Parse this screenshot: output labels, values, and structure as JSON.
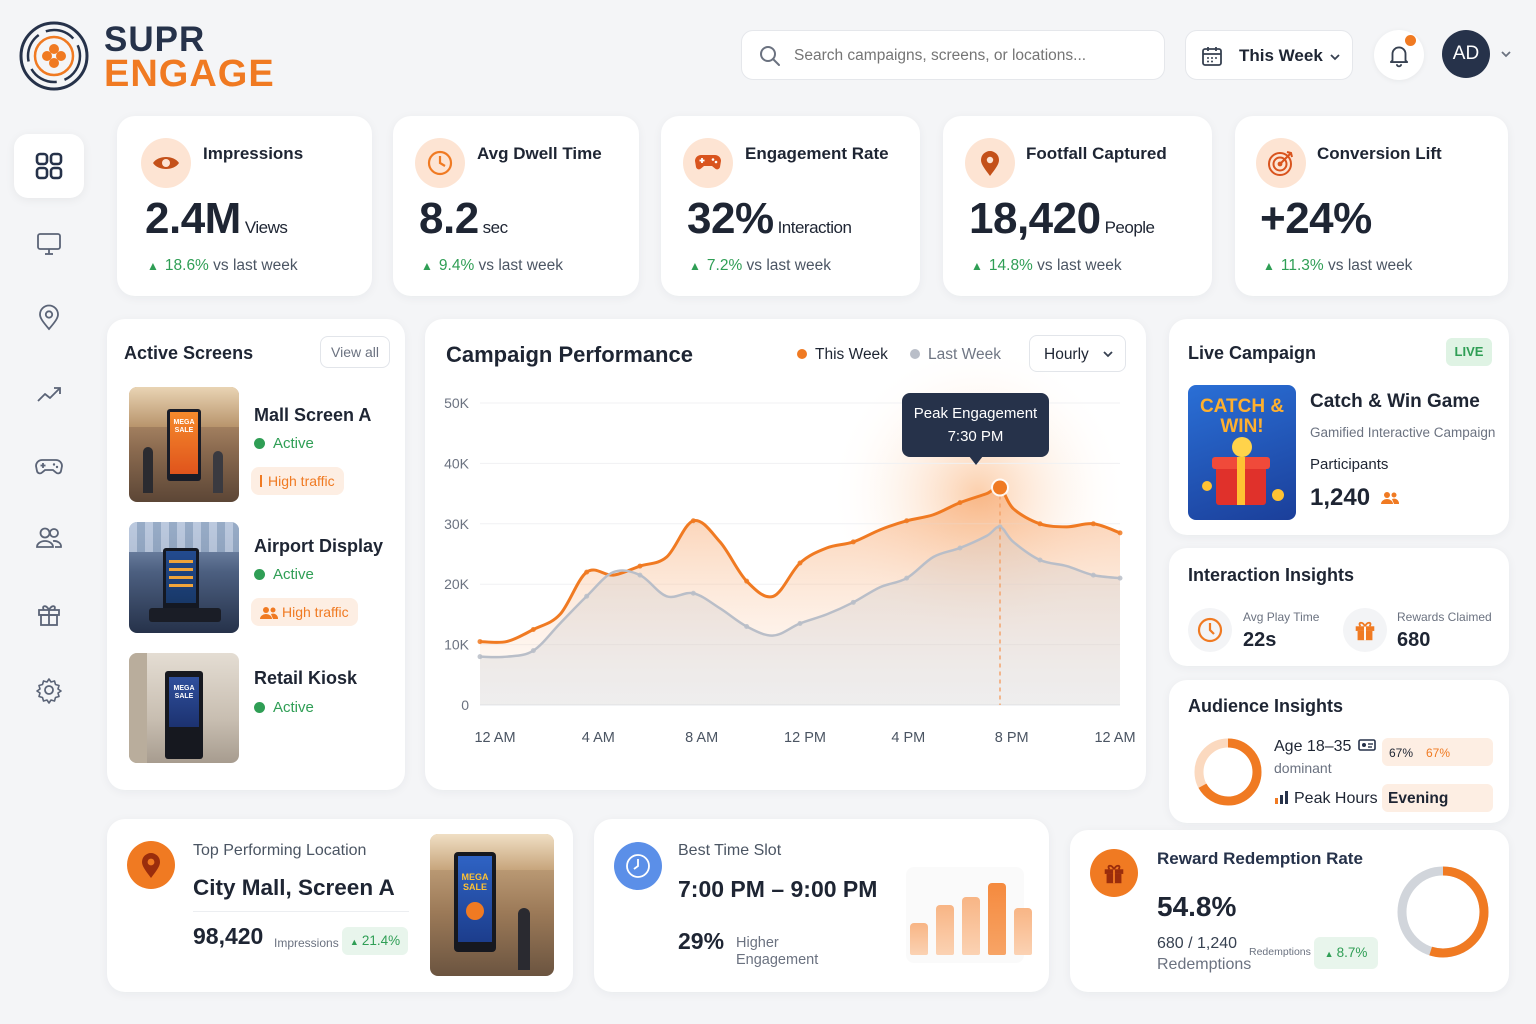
{
  "brand": {
    "line1": "SUPR",
    "line2": "ENGAGE"
  },
  "header": {
    "search_placeholder": "Search campaigns, screens, or locations...",
    "date_range": "This Week",
    "avatar_initials": "AD"
  },
  "sidebar": {
    "items": [
      {
        "icon": "grid-icon",
        "active": true
      },
      {
        "icon": "monitor-icon"
      },
      {
        "icon": "map-pin-icon"
      },
      {
        "icon": "trend-icon"
      },
      {
        "icon": "gamepad-icon"
      },
      {
        "icon": "users-icon"
      },
      {
        "icon": "gift-icon"
      },
      {
        "icon": "gear-icon"
      }
    ]
  },
  "kpis": [
    {
      "title": "Impressions",
      "value": "2.4M",
      "unit": "Views",
      "delta": "18.6%",
      "delta_suffix": "vs last week",
      "icon": "eye-icon"
    },
    {
      "title": "Avg Dwell Time",
      "value": "8.2",
      "unit": "sec",
      "delta": "9.4%",
      "delta_suffix": "vs last week",
      "icon": "clock-icon"
    },
    {
      "title": "Engagement Rate",
      "value": "32%",
      "unit": "Interaction",
      "delta": "7.2%",
      "delta_suffix": "vs last week",
      "icon": "gamepad-icon"
    },
    {
      "title": "Footfall Captured",
      "value": "18,420",
      "unit": "People",
      "delta": "14.8%",
      "delta_suffix": "vs last week",
      "icon": "map-pin-icon"
    },
    {
      "title": "Conversion Lift",
      "value": "+24%",
      "unit": "",
      "delta": "11.3%",
      "delta_suffix": "vs last week",
      "icon": "target-icon"
    }
  ],
  "active_screens": {
    "title": "Active Screens",
    "view_all": "View all",
    "items": [
      {
        "name": "Mall Screen A",
        "status": "Active",
        "tag": "High traffic",
        "screen_text": "MEGA SALE"
      },
      {
        "name": "Airport Display",
        "status": "Active",
        "tag": "High traffic",
        "screen_text": ""
      },
      {
        "name": "Retail Kiosk",
        "status": "Active",
        "tag": "",
        "screen_text": "MEGA SALE"
      }
    ]
  },
  "campaign_performance": {
    "title": "Campaign Performance",
    "legend_this": "This Week",
    "legend_last": "Last Week",
    "interval": "Hourly",
    "tooltip_title": "Peak Engagement",
    "tooltip_time": "7:30 PM"
  },
  "chart_data": {
    "type": "area",
    "x_ticks": [
      "12 AM",
      "4 AM",
      "8 AM",
      "12 PM",
      "4 PM",
      "8 PM",
      "12 AM"
    ],
    "y_ticks": [
      "0",
      "10K",
      "20K",
      "30K",
      "40K",
      "50K"
    ],
    "ylim": [
      0,
      50000
    ],
    "xlim": [
      0,
      24
    ],
    "series": [
      {
        "name": "This Week",
        "color": "#f07a22",
        "x": [
          0,
          1,
          2,
          3,
          4,
          5,
          6,
          7,
          8,
          9,
          10,
          11,
          12,
          13,
          14,
          15,
          16,
          17,
          18,
          19,
          19.5,
          20,
          21,
          22,
          23,
          24
        ],
        "y": [
          10500,
          10500,
          12500,
          15000,
          22000,
          21500,
          23000,
          24500,
          30500,
          27000,
          20500,
          18000,
          23500,
          26000,
          27000,
          29000,
          30500,
          31500,
          33500,
          35000,
          36000,
          32500,
          30000,
          29500,
          30000,
          28500
        ]
      },
      {
        "name": "Last Week",
        "color": "#b9bec8",
        "x": [
          0,
          1,
          2,
          3,
          4,
          5,
          6,
          7,
          8,
          9,
          10,
          11,
          12,
          13,
          14,
          15,
          16,
          17,
          18,
          19,
          19.5,
          20,
          21,
          22,
          23,
          24
        ],
        "y": [
          8000,
          8000,
          9000,
          13500,
          18000,
          22000,
          21500,
          18000,
          18500,
          16000,
          13000,
          11500,
          13500,
          15000,
          17000,
          19500,
          21000,
          24500,
          26000,
          28000,
          29500,
          27000,
          24000,
          23000,
          21500,
          21000
        ]
      }
    ],
    "peak": {
      "x": 19.5,
      "y": 36000,
      "label": "Peak Engagement",
      "time": "7:30 PM"
    },
    "grid": true
  },
  "live_campaign": {
    "title": "Live Campaign",
    "badge": "LIVE",
    "name": "Catch & Win Game",
    "subtitle": "Gamified Interactive Campaign",
    "participants_label": "Participants",
    "participants": "1,240",
    "poster_text": "CATCH & WIN!"
  },
  "interaction_insights": {
    "title": "Interaction Insights",
    "avg_play_label": "Avg Play Time",
    "avg_play_value": "22s",
    "rewards_label": "Rewards Claimed",
    "rewards_value": "680"
  },
  "audience_insights": {
    "title": "Audience Insights",
    "age": "Age 18–35",
    "dominant": "dominant",
    "pct_a": "67%",
    "pct_b": "67%",
    "peak_hours_label": "Peak Hours",
    "peak_hours_value": "Evening",
    "share": 0.67
  },
  "top_location": {
    "label": "Top Performing Location",
    "name": "City Mall, Screen A",
    "value": "98,420",
    "unit": "Impressions",
    "delta": "21.4%",
    "screen_text": "MEGA SALE"
  },
  "best_time": {
    "label": "Best Time Slot",
    "slot": "7:00 PM – 9:00 PM",
    "pct": "29%",
    "pct_label_1": "Higher",
    "pct_label_2": "Engagement",
    "bars": [
      0.45,
      0.7,
      0.8,
      1.0,
      0.65
    ]
  },
  "reward_redemption": {
    "title": "Reward Redemption Rate",
    "rate": "54.8%",
    "count": "680 / 1,240",
    "count_label": "Redemptions",
    "small_label": "Redemptions",
    "delta": "8.7%",
    "share": 0.548
  },
  "colors": {
    "accent": "#f07a22",
    "navy": "#26324a",
    "green": "#2f9e55",
    "blue": "#5b8fe8"
  }
}
